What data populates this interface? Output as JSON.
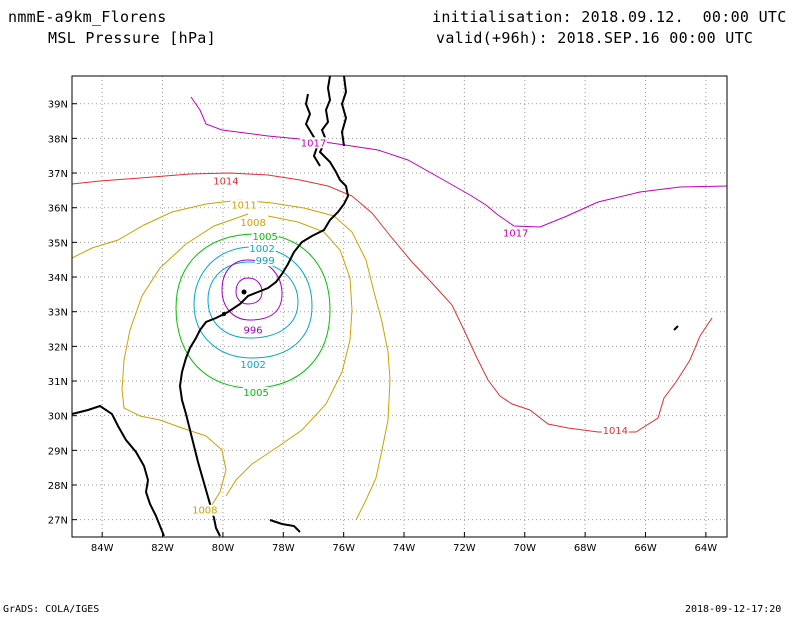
{
  "header": {
    "model": "nmmE-a9km_Florens",
    "field": "MSL Pressure [hPa]",
    "init": "initialisation: 2018.09.12.  00:00 UTC",
    "valid": "valid(+96h): 2018.SEP.16 00:00 UTC"
  },
  "footer": {
    "left": "GrADS: COLA/IGES",
    "right": "2018-09-12-17:20"
  },
  "map": {
    "lon_range": [
      -85,
      -63.3
    ],
    "lat_range": [
      26.5,
      39.8
    ],
    "lon_ticks": [
      "84W",
      "82W",
      "80W",
      "78W",
      "76W",
      "74W",
      "72W",
      "70W",
      "68W",
      "66W",
      "64W"
    ],
    "lat_ticks": [
      "39N",
      "38N",
      "37N",
      "36N",
      "35N",
      "34N",
      "33N",
      "32N",
      "31N",
      "30N",
      "29N",
      "28N",
      "27N"
    ],
    "grid": true,
    "contour_labels": [
      {
        "text": "1017",
        "lon": -77.0,
        "lat": 37.8,
        "color": "#c000c0"
      },
      {
        "text": "1017",
        "lon": -70.3,
        "lat": 35.2,
        "color": "#c000c0"
      },
      {
        "text": "1014",
        "lon": -79.9,
        "lat": 36.7,
        "color": "#e03030"
      },
      {
        "text": "1014",
        "lon": -67.0,
        "lat": 29.5,
        "color": "#e03030"
      },
      {
        "text": "1011",
        "lon": -79.3,
        "lat": 36.0,
        "color": "#d0a000"
      },
      {
        "text": "1008",
        "lon": -79.0,
        "lat": 35.5,
        "color": "#d0a000"
      },
      {
        "text": "1008",
        "lon": -80.6,
        "lat": 27.2,
        "color": "#d0a000"
      },
      {
        "text": "1005",
        "lon": -78.6,
        "lat": 35.1,
        "color": "#00c000"
      },
      {
        "text": "1005",
        "lon": -78.9,
        "lat": 30.6,
        "color": "#00c000"
      },
      {
        "text": "1002",
        "lon": -78.7,
        "lat": 34.75,
        "color": "#00a8c8"
      },
      {
        "text": "1002",
        "lon": -79.0,
        "lat": 31.4,
        "color": "#00a8c8"
      },
      {
        "text": "999",
        "lon": -78.6,
        "lat": 34.4,
        "color": "#00a8c8"
      },
      {
        "text": "996",
        "lon": -79.0,
        "lat": 32.4,
        "color": "#a000c0"
      }
    ]
  },
  "colors": {
    "c1017": "#c000c0",
    "c1014": "#e03030",
    "c1011": "#d0a000",
    "c1005": "#00c000",
    "c1002": "#00a8c8",
    "c996": "#a000c0",
    "coast": "#000000"
  }
}
